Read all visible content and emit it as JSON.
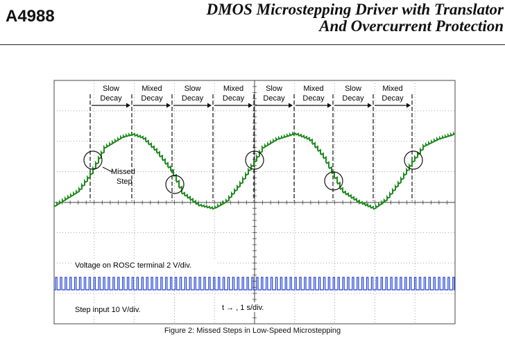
{
  "header": {
    "part_number": "A4988",
    "title_line1": "DMOS Microstepping Driver with Translator",
    "title_line2": "And Overcurrent Protection"
  },
  "figure": {
    "segments": [
      {
        "line1": "Slow",
        "line2": "Decay"
      },
      {
        "line1": "Mixed",
        "line2": "Decay"
      },
      {
        "line1": "Slow",
        "line2": "Decay"
      },
      {
        "line1": "Mixed",
        "line2": "Decay"
      },
      {
        "line1": "Slow",
        "line2": "Decay"
      },
      {
        "line1": "Mixed",
        "line2": "Decay"
      },
      {
        "line1": "Slow",
        "line2": "Decay"
      },
      {
        "line1": "Mixed",
        "line2": "Decay"
      }
    ],
    "missed_label_line1": "Missed",
    "missed_label_line2": "Step",
    "rosc_label": "Voltage on ROSC terminal 2 V/div.",
    "step_label": "Step input 10 V/div.",
    "time_label": "t → , 1 s/div.",
    "colors": {
      "current_trace": "#1e8a1e",
      "step_trace": "#1f3fd6",
      "grid": "#444444"
    }
  },
  "caption": "Figure 2: Missed Steps in Low-Speed Microstepping"
}
